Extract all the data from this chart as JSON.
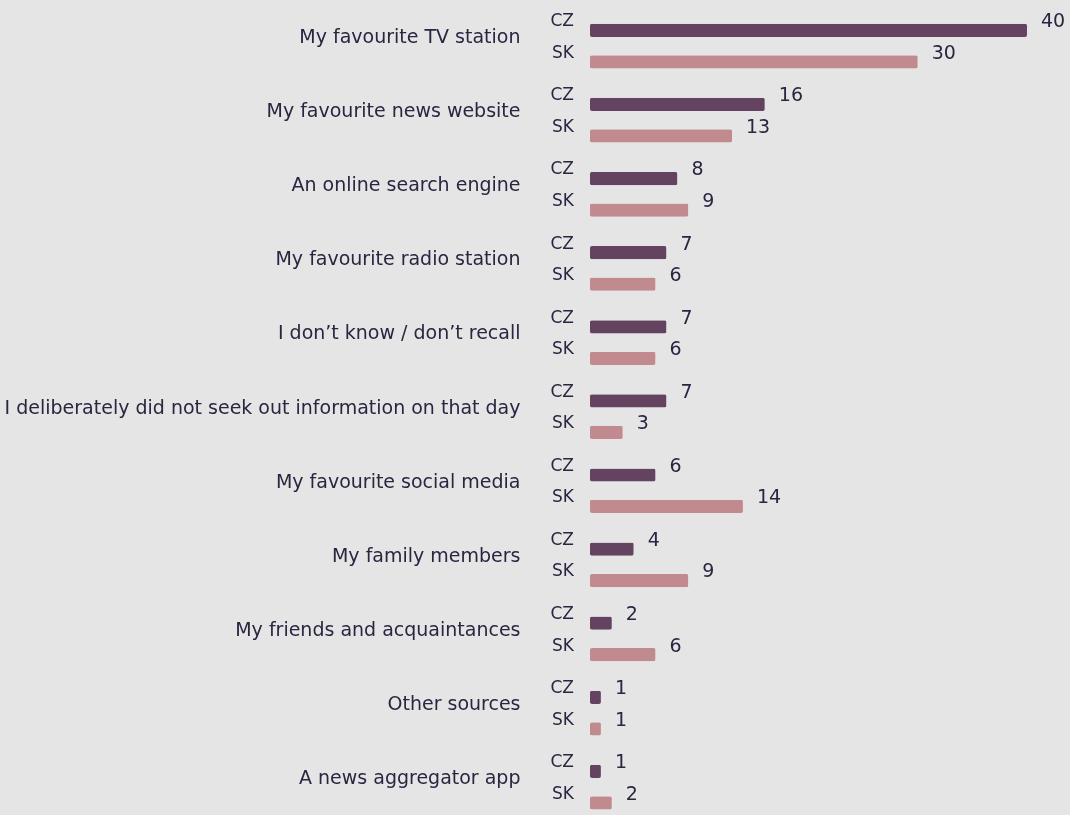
{
  "chart_data": {
    "type": "bar",
    "orientation": "horizontal",
    "categories": [
      "My favourite TV station",
      "My favourite news website",
      "An online search engine",
      "My favourite radio station",
      "I don’t know / don’t recall",
      "I deliberately did not seek out information on that day",
      "My favourite social media",
      "My family members",
      "My friends and acquaintances",
      "Other sources",
      "A news aggregator app"
    ],
    "series": [
      {
        "name": "CZ",
        "color": "#63435f",
        "values": [
          40,
          16,
          8,
          7,
          7,
          7,
          6,
          4,
          2,
          1,
          1
        ]
      },
      {
        "name": "SK",
        "color": "#c08a8f",
        "values": [
          30,
          13,
          9,
          6,
          6,
          3,
          14,
          9,
          6,
          1,
          2
        ]
      }
    ],
    "data_labels": true,
    "legend": false,
    "grid": false
  }
}
